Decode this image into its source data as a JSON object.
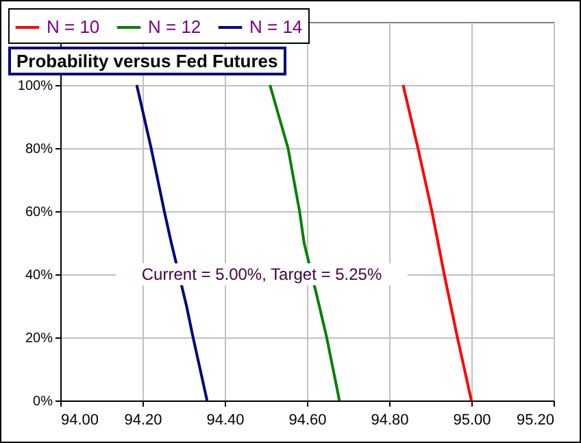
{
  "chart_data": {
    "type": "line",
    "title": "Probability versus Fed Futures",
    "annotations": [
      "Current = 5.00%, Target = 5.25%"
    ],
    "series": [
      {
        "name": "N = 10",
        "color": "#ff0000",
        "x": [
          94.834,
          94.87,
          94.904,
          94.934,
          94.966,
          95.0
        ],
        "values": [
          100,
          80,
          60,
          40,
          20,
          0
        ]
      },
      {
        "name": "N = 12",
        "color": "#008000",
        "x": [
          94.51,
          94.554,
          94.582,
          94.593,
          94.63,
          94.648,
          94.679
        ],
        "values": [
          100,
          80,
          60,
          50,
          30,
          20,
          0
        ]
      },
      {
        "name": "N = 14",
        "color": "#000080",
        "x": [
          94.186,
          94.221,
          94.253,
          94.27,
          94.307,
          94.323,
          94.357
        ],
        "values": [
          100,
          80,
          60,
          50,
          30,
          20,
          0
        ]
      }
    ],
    "xlim": [
      94.0,
      95.2
    ],
    "xticks": [
      {
        "value": 94.0,
        "label": "94.00"
      },
      {
        "value": 94.2,
        "label": "94.20"
      },
      {
        "value": 94.4,
        "label": "94.40"
      },
      {
        "value": 94.6,
        "label": "94.60"
      },
      {
        "value": 94.8,
        "label": "94.80"
      },
      {
        "value": 95.0,
        "label": "95.00"
      },
      {
        "value": 95.2,
        "label": "95.20"
      }
    ],
    "ylim": [
      0,
      120
    ],
    "yticks": [
      {
        "value": 0,
        "label": "0%"
      },
      {
        "value": 20,
        "label": "20%"
      },
      {
        "value": 40,
        "label": "40%"
      },
      {
        "value": 60,
        "label": "60%"
      },
      {
        "value": 80,
        "label": "80%"
      },
      {
        "value": 100,
        "label": "100%"
      }
    ],
    "grid": true,
    "legend": "top left"
  }
}
